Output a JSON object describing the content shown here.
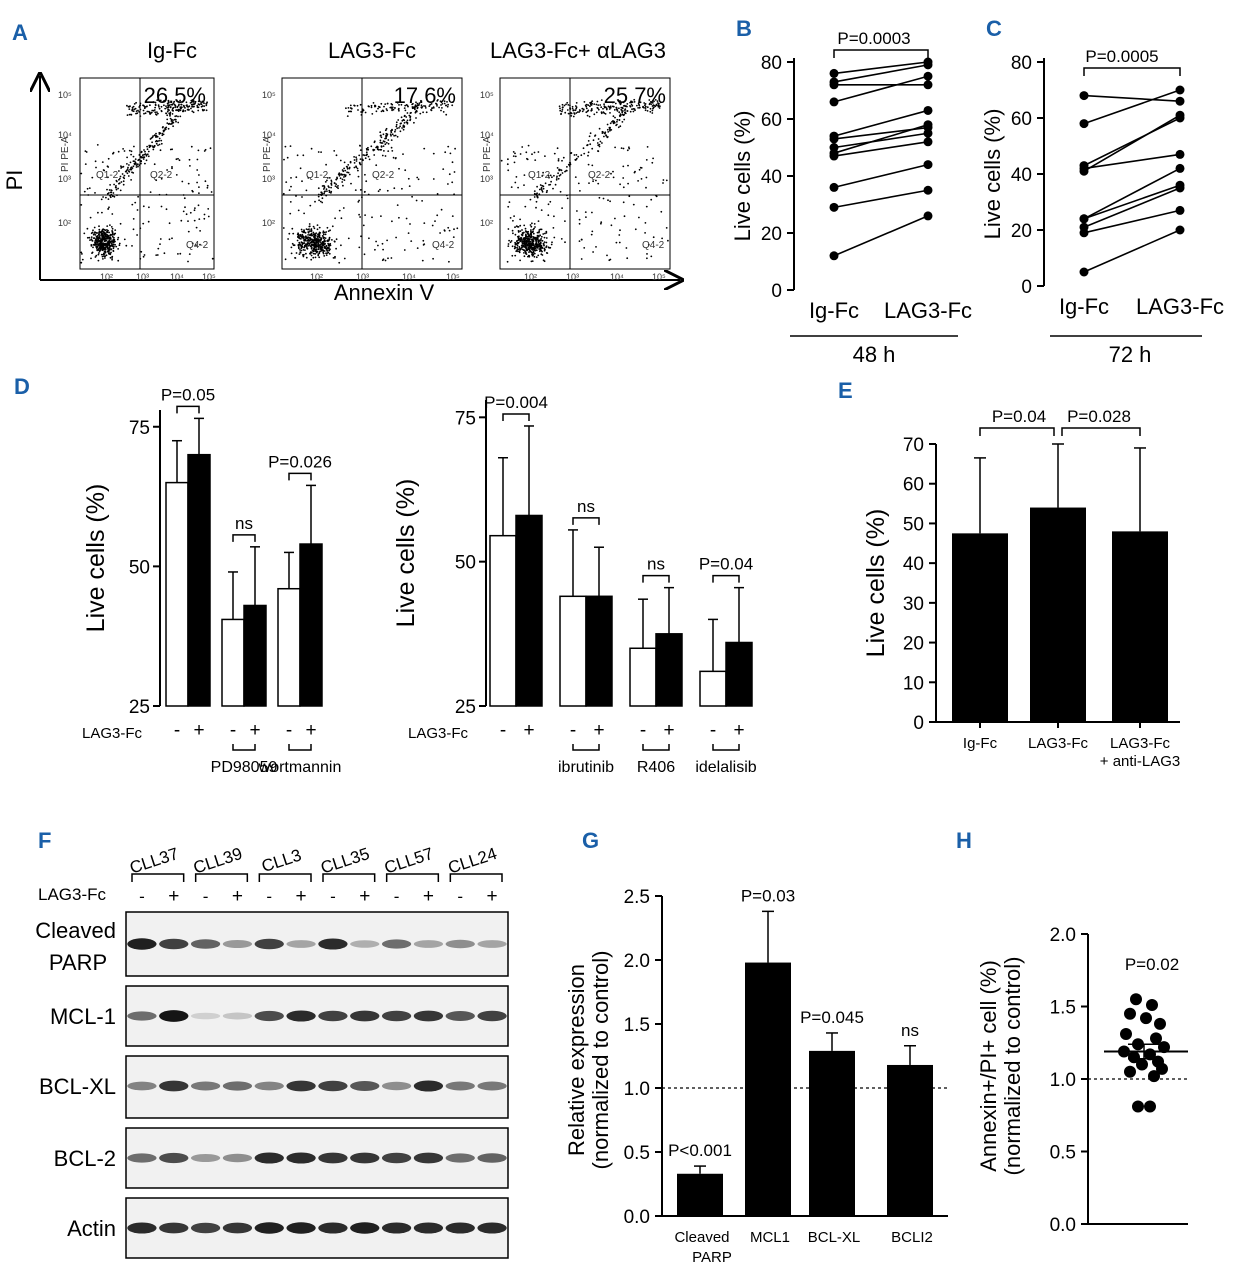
{
  "panels": {
    "A": {
      "label": "A",
      "samples": [
        {
          "title": "Ig-Fc",
          "percent": "26.5%"
        },
        {
          "title": "LAG3-Fc",
          "percent": "17.6%"
        },
        {
          "title": "LAG3-Fc+ αLAG3",
          "percent": "25.7%"
        }
      ],
      "ylabel": "PI",
      "xlabel": "Annexin V",
      "ytick_axis_labels": [
        "PI PE-A",
        "PI PE-A",
        "PI PE-A"
      ],
      "quadrants": [
        "Q1-2",
        "Q2-2",
        "Q4-2"
      ],
      "xticks": [
        "10²",
        "10³",
        "10⁴",
        "10⁵"
      ],
      "yticks": [
        "10²",
        "10³",
        "10⁴",
        "10⁵"
      ]
    },
    "B": {
      "label": "B",
      "pvalue": "P=0.0003",
      "time": "48 h"
    },
    "C": {
      "label": "C",
      "pvalue": "P=0.0005",
      "time": "72 h"
    },
    "D": {
      "label": "D",
      "treatment_label": "LAG3-Fc",
      "left_inhibitors": [
        "PD98059",
        "wortmannin"
      ],
      "right_inhibitors": [
        "ibrutinib",
        "R406",
        "idelalisib"
      ],
      "left_pvals": [
        "P=0.05",
        "ns",
        "P=0.026"
      ],
      "right_pvals": [
        "P=0.004",
        "ns",
        "ns",
        "P=0.04"
      ],
      "minus": "-",
      "plus": "+"
    },
    "E": {
      "label": "E",
      "pvals": [
        "P=0.04",
        "P=0.028"
      ]
    },
    "F": {
      "label": "F",
      "treatment_label": "LAG3-Fc",
      "patients": [
        "CLL37",
        "CLL39",
        "CLL3",
        "CLL35",
        "CLL57",
        "CLL24"
      ],
      "proteins": [
        "Cleaved PARP",
        "MCL-1",
        "BCL-XL",
        "BCL-2",
        "Actin"
      ],
      "protein_line1": [
        "Cleaved",
        "MCL-1",
        "BCL-XL",
        "BCL-2",
        "Actin"
      ],
      "protein_line2": [
        "PARP",
        "",
        "",
        "",
        ""
      ],
      "minus": "-",
      "plus": "+"
    },
    "G": {
      "label": "G",
      "pvals": [
        "P<0.001",
        "P=0.03",
        "P=0.045",
        "ns"
      ],
      "cat_line2": [
        "PARP",
        "",
        "",
        ""
      ]
    },
    "H": {
      "label": "H",
      "pvalue": "P=0.02"
    }
  },
  "chart_data": [
    {
      "panel": "B",
      "type": "line",
      "categories": [
        "Ig-Fc",
        "LAG3-Fc"
      ],
      "ylabel": "Live cells (%)",
      "ylim": [
        0,
        80
      ],
      "yticks": [
        0,
        20,
        40,
        60,
        80
      ],
      "pairs": [
        [
          76,
          80
        ],
        [
          73,
          79
        ],
        [
          72,
          72
        ],
        [
          66,
          75
        ],
        [
          54,
          63
        ],
        [
          53,
          57
        ],
        [
          50,
          55
        ],
        [
          48,
          58
        ],
        [
          47,
          52
        ],
        [
          36,
          44
        ],
        [
          29,
          35
        ],
        [
          12,
          26
        ]
      ]
    },
    {
      "panel": "C",
      "type": "line",
      "categories": [
        "Ig-Fc",
        "LAG3-Fc"
      ],
      "ylabel": "Live cells (%)",
      "ylim": [
        0,
        80
      ],
      "yticks": [
        0,
        20,
        40,
        60,
        80
      ],
      "pairs": [
        [
          68,
          66
        ],
        [
          58,
          70
        ],
        [
          43,
          60
        ],
        [
          42,
          47
        ],
        [
          41,
          61
        ],
        [
          24,
          36
        ],
        [
          24,
          42
        ],
        [
          21,
          35
        ],
        [
          19,
          27
        ],
        [
          5,
          20
        ]
      ]
    },
    {
      "panel": "D-left",
      "type": "bar",
      "ylabel": "Live cells (%)",
      "ylim": [
        25,
        78
      ],
      "yticks": [
        25,
        50,
        75
      ],
      "groups": [
        {
          "name": "",
          "minus": 65,
          "minus_err": 7.5,
          "plus": 70,
          "plus_err": 6.5
        },
        {
          "name": "PD98059",
          "minus": 40.5,
          "minus_err": 8.5,
          "plus": 43,
          "plus_err": 10.5
        },
        {
          "name": "wortmannin",
          "minus": 46,
          "minus_err": 6.5,
          "plus": 54,
          "plus_err": 10.5
        }
      ]
    },
    {
      "panel": "D-right",
      "type": "bar",
      "ylabel": "Live cells (%)",
      "ylim": [
        25,
        78
      ],
      "yticks": [
        25,
        50,
        75
      ],
      "groups": [
        {
          "name": "",
          "minus": 54.5,
          "minus_err": 13.5,
          "plus": 58,
          "plus_err": 15.5
        },
        {
          "name": "ibrutinib",
          "minus": 44,
          "minus_err": 11.5,
          "plus": 44,
          "plus_err": 8.5
        },
        {
          "name": "R406",
          "minus": 35,
          "minus_err": 8.5,
          "plus": 37.5,
          "plus_err": 8
        },
        {
          "name": "idelalisib",
          "minus": 31,
          "minus_err": 9,
          "plus": 36,
          "plus_err": 9.5
        }
      ]
    },
    {
      "panel": "E",
      "type": "bar",
      "categories": [
        "Ig-Fc",
        "LAG3-Fc",
        "LAG3-Fc\n+ anti-LAG3"
      ],
      "values": [
        47.5,
        54,
        48
      ],
      "errors": [
        19,
        16,
        21
      ],
      "ylabel": "Live cells  (%)",
      "ylim": [
        0,
        70
      ],
      "yticks": [
        0,
        10,
        20,
        30,
        40,
        50,
        60,
        70
      ]
    },
    {
      "panel": "G",
      "type": "bar",
      "categories": [
        "Cleaved",
        "MCL1",
        "BCL-XL",
        "BCLI2"
      ],
      "values": [
        0.33,
        1.98,
        1.29,
        1.18
      ],
      "errors": [
        0.06,
        0.4,
        0.14,
        0.15
      ],
      "reference_line": 1.0,
      "ylabel": "Relative expression",
      "ylabel2": "(normalized to control)",
      "ylim": [
        0,
        2.5
      ],
      "yticks": [
        "0.0",
        "0.5",
        "1.0",
        "1.5",
        "2.0",
        "2.5"
      ]
    },
    {
      "panel": "H",
      "type": "scatter",
      "values": [
        1.55,
        1.51,
        1.45,
        1.42,
        1.38,
        1.31,
        1.28,
        1.24,
        1.22,
        1.19,
        1.17,
        1.15,
        1.12,
        1.1,
        1.07,
        1.05,
        1.02,
        0.81,
        0.81
      ],
      "mean": 1.19,
      "sem": 0.05,
      "reference_line": 1.0,
      "ylabel": "Annexin+/PI+ cell (%)",
      "ylabel2": "(normalized to control)",
      "ylim": [
        0,
        2.0
      ],
      "yticks": [
        "0.0",
        "0.5",
        "1.0",
        "1.5",
        "2.0"
      ]
    }
  ]
}
